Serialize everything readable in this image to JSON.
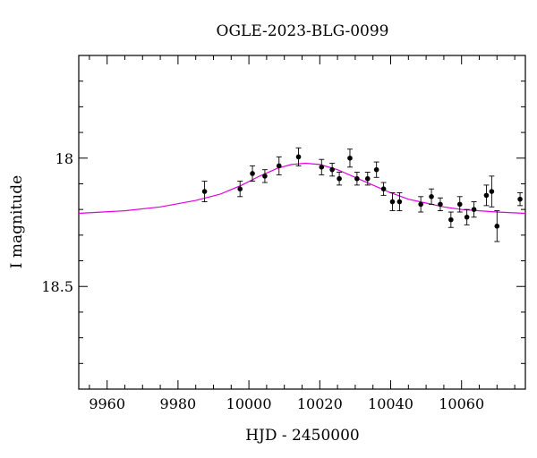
{
  "chart_data": {
    "type": "scatter",
    "title": "OGLE-2023-BLG-0099",
    "xlabel": "HJD - 2450000",
    "ylabel": "I magnitude",
    "xlim": [
      9952,
      10078
    ],
    "ylim": [
      18.9,
      17.6
    ],
    "y_inverted": true,
    "x_ticks": [
      9960,
      9980,
      10000,
      10020,
      10040,
      10060
    ],
    "y_ticks_labeled": [
      18.0,
      18.5
    ],
    "x_minor_step": 5,
    "y_minor_step": 0.1,
    "grid": false,
    "colors": {
      "points": "#000000",
      "model": "#e000e0",
      "frame": "#000000"
    },
    "series": [
      {
        "type": "scatter",
        "points": [
          {
            "x": 9987.5,
            "y": 18.13,
            "err": 0.04
          },
          {
            "x": 9997.5,
            "y": 18.12,
            "err": 0.03
          },
          {
            "x": 10001.0,
            "y": 18.06,
            "err": 0.03
          },
          {
            "x": 10004.5,
            "y": 18.07,
            "err": 0.025
          },
          {
            "x": 10008.5,
            "y": 18.03,
            "err": 0.035
          },
          {
            "x": 10014.0,
            "y": 17.995,
            "err": 0.035
          },
          {
            "x": 10020.5,
            "y": 18.035,
            "err": 0.03
          },
          {
            "x": 10023.5,
            "y": 18.045,
            "err": 0.025
          },
          {
            "x": 10025.5,
            "y": 18.08,
            "err": 0.025
          },
          {
            "x": 10028.5,
            "y": 18.0,
            "err": 0.035
          },
          {
            "x": 10030.5,
            "y": 18.08,
            "err": 0.025
          },
          {
            "x": 10033.5,
            "y": 18.08,
            "err": 0.025
          },
          {
            "x": 10036.0,
            "y": 18.045,
            "err": 0.03
          },
          {
            "x": 10038.0,
            "y": 18.12,
            "err": 0.025
          },
          {
            "x": 10040.5,
            "y": 18.17,
            "err": 0.035
          },
          {
            "x": 10042.5,
            "y": 18.17,
            "err": 0.035
          },
          {
            "x": 10048.5,
            "y": 18.18,
            "err": 0.03
          },
          {
            "x": 10051.5,
            "y": 18.15,
            "err": 0.03
          },
          {
            "x": 10054.0,
            "y": 18.18,
            "err": 0.025
          },
          {
            "x": 10057.0,
            "y": 18.24,
            "err": 0.03
          },
          {
            "x": 10059.5,
            "y": 18.18,
            "err": 0.03
          },
          {
            "x": 10061.5,
            "y": 18.23,
            "err": 0.03
          },
          {
            "x": 10063.5,
            "y": 18.2,
            "err": 0.03
          },
          {
            "x": 10067.0,
            "y": 18.145,
            "err": 0.04
          },
          {
            "x": 10068.5,
            "y": 18.13,
            "err": 0.06
          },
          {
            "x": 10070.0,
            "y": 18.265,
            "err": 0.06
          },
          {
            "x": 10076.5,
            "y": 18.16,
            "err": 0.025
          }
        ]
      },
      {
        "type": "line",
        "points": [
          {
            "x": 9952,
            "y": 18.215
          },
          {
            "x": 9965,
            "y": 18.205
          },
          {
            "x": 9975,
            "y": 18.19
          },
          {
            "x": 9985,
            "y": 18.165
          },
          {
            "x": 9992,
            "y": 18.14
          },
          {
            "x": 9998,
            "y": 18.105
          },
          {
            "x": 10003,
            "y": 18.07
          },
          {
            "x": 10008,
            "y": 18.04
          },
          {
            "x": 10012,
            "y": 18.025
          },
          {
            "x": 10016,
            "y": 18.02
          },
          {
            "x": 10020,
            "y": 18.025
          },
          {
            "x": 10025,
            "y": 18.045
          },
          {
            "x": 10030,
            "y": 18.075
          },
          {
            "x": 10035,
            "y": 18.105
          },
          {
            "x": 10040,
            "y": 18.135
          },
          {
            "x": 10045,
            "y": 18.16
          },
          {
            "x": 10050,
            "y": 18.175
          },
          {
            "x": 10055,
            "y": 18.19
          },
          {
            "x": 10060,
            "y": 18.2
          },
          {
            "x": 10065,
            "y": 18.205
          },
          {
            "x": 10070,
            "y": 18.21
          },
          {
            "x": 10078,
            "y": 18.215
          }
        ]
      }
    ]
  }
}
